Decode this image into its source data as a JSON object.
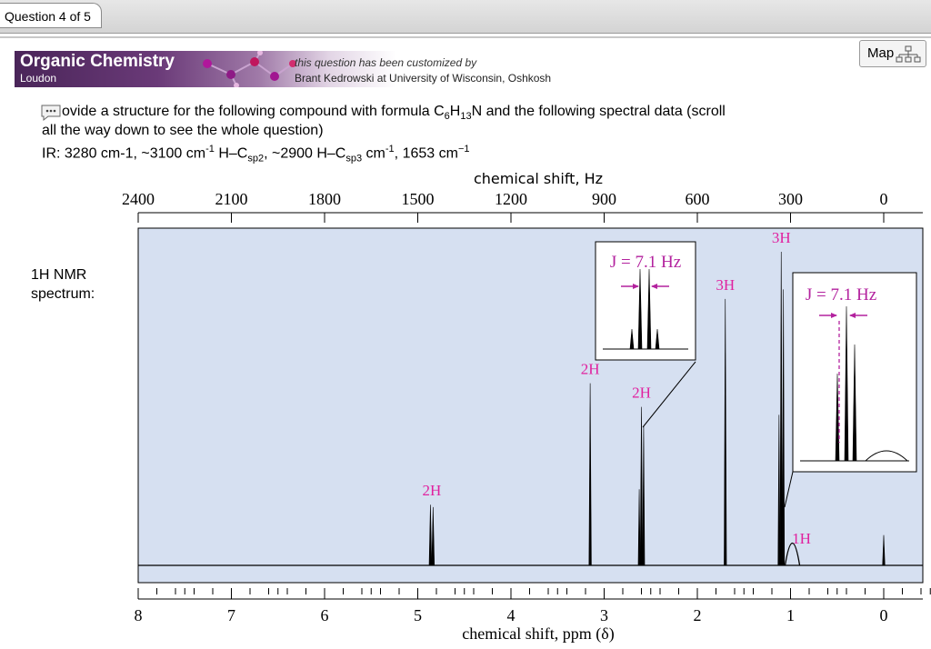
{
  "header": {
    "question_tab": "Question 4 of 5",
    "map_label": "Map"
  },
  "banner": {
    "title": "Organic Chemistry",
    "subtitle": "Loudon",
    "custom_line1": "this question has been customized by",
    "custom_line2": "Brant Kedrowski at University of Wisconsin, Oshkosh"
  },
  "question": {
    "line1_pre": "ovide a structure for the following compound with formula C",
    "formula_c_sub": "6",
    "formula_h": "H",
    "formula_h_sub": "13",
    "line1_post": "N and the following spectral data (scroll",
    "line2": "all the way down to see the whole question)",
    "ir_a": "IR: 3280 cm-1, ~3100 cm",
    "ir_sup1": "-1",
    "ir_b": " H–C",
    "ir_sub1": "sp2",
    "ir_c": ", ~2900 H–C",
    "ir_sub2": "sp3",
    "ir_d": " cm",
    "ir_sup2": "-1",
    "ir_e": ", 1653 cm",
    "ir_sup3": "−1"
  },
  "nmr_label_line1": "1H NMR",
  "nmr_label_line2": "spectrum:",
  "chart_data": {
    "type": "line",
    "top_axis_label": "chemical shift, Hz",
    "top_axis_ticks": [
      "2400",
      "2100",
      "1800",
      "1500",
      "1200",
      "900",
      "600",
      "300",
      "0"
    ],
    "top_axis_values": [
      2400,
      2100,
      1800,
      1500,
      1200,
      900,
      600,
      300,
      0
    ],
    "bottom_axis_label": "chemical shift, ppm (δ)",
    "bottom_axis_ticks": [
      "8",
      "7",
      "6",
      "5",
      "4",
      "3",
      "2",
      "1",
      "0"
    ],
    "bottom_axis_values": [
      8,
      7,
      6,
      5,
      4,
      3,
      2,
      1,
      0
    ],
    "xlim_ppm": [
      8,
      -0.5
    ],
    "peaks": [
      {
        "ppm": 4.85,
        "label": "2H",
        "mult": "doublet",
        "height": 0.18
      },
      {
        "ppm": 3.15,
        "label": "2H",
        "mult": "singlet",
        "height": 0.54
      },
      {
        "ppm": 2.6,
        "label": "2H",
        "mult": "triplet",
        "height": 0.47
      },
      {
        "ppm": 1.7,
        "label": "3H",
        "mult": "singlet",
        "height": 0.79
      },
      {
        "ppm": 1.1,
        "label": "3H",
        "mult": "triplet",
        "height": 0.93
      },
      {
        "ppm": 0.98,
        "label": "1H",
        "mult": "broad",
        "height": 0.06
      },
      {
        "ppm": 0.0,
        "label": "",
        "mult": "singlet",
        "height": 0.09
      }
    ],
    "insets": [
      {
        "text": "J = 7.1 Hz",
        "for_ppm": 2.6
      },
      {
        "text": "J = 7.1 Hz",
        "for_ppm": 1.1
      }
    ]
  }
}
